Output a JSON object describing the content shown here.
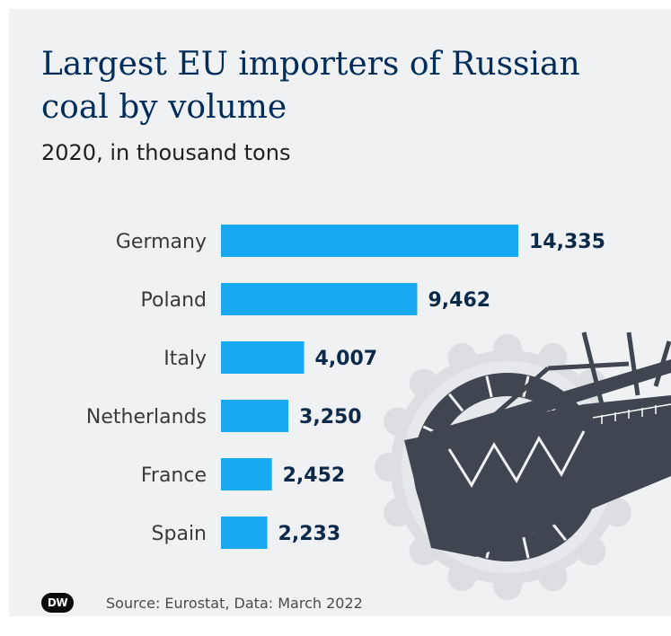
{
  "brand": {
    "logo_text": "DW"
  },
  "source": "Source: Eurostat, Data: March 2022",
  "colors": {
    "bar": "#18a9f2",
    "value_text": "#0b2a4a",
    "label_text": "#3a3a3a",
    "background": "#f0f1f3"
  },
  "chart_data": {
    "type": "bar",
    "orientation": "horizontal",
    "title": "Largest EU importers of Russian coal by volume",
    "subtitle": "2020, in thousand tons",
    "categories": [
      "Germany",
      "Poland",
      "Italy",
      "Netherlands",
      "France",
      "Spain"
    ],
    "values": [
      14335,
      9462,
      4007,
      3250,
      2452,
      2233
    ],
    "value_labels": [
      "14,335",
      "9,462",
      "4,007",
      "3,250",
      "2,452",
      "2,233"
    ],
    "xlim": [
      0,
      14335
    ],
    "grid": false,
    "legend": "none"
  }
}
